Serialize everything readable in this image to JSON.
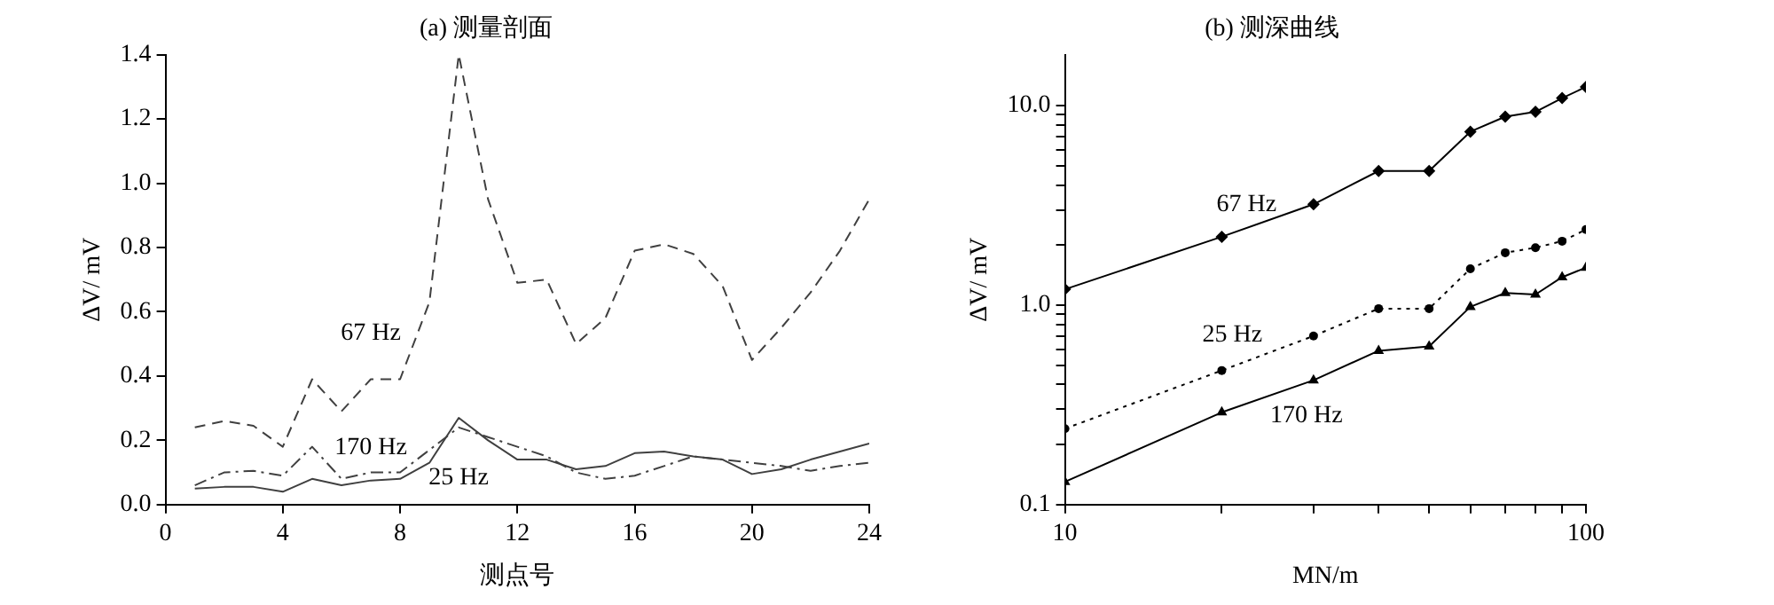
{
  "chart_data": [
    {
      "type": "line",
      "title": "(a) 测量剖面",
      "xlabel": "测点号",
      "ylabel": "ΔV/ mV",
      "x": [
        1,
        2,
        3,
        4,
        5,
        6,
        7,
        8,
        9,
        10,
        11,
        12,
        13,
        14,
        15,
        16,
        17,
        18,
        19,
        20,
        21,
        22,
        23,
        24
      ],
      "series": [
        {
          "name": "67 Hz",
          "color": "#404040",
          "line_style": "dashed",
          "values": [
            0.24,
            0.26,
            0.245,
            0.18,
            0.39,
            0.29,
            0.39,
            0.39,
            0.63,
            1.4,
            0.95,
            0.69,
            0.7,
            0.5,
            0.58,
            0.79,
            0.81,
            0.78,
            0.68,
            0.45,
            0.55,
            0.66,
            0.79,
            0.95
          ]
        },
        {
          "name": "170 Hz",
          "color": "#404040",
          "line_style": "dashdot",
          "values": [
            0.06,
            0.1,
            0.105,
            0.09,
            0.18,
            0.08,
            0.1,
            0.1,
            0.17,
            0.24,
            0.21,
            0.18,
            0.15,
            0.1,
            0.08,
            0.09,
            0.12,
            0.15,
            0.14,
            0.13,
            0.12,
            0.105,
            0.12,
            0.13
          ]
        },
        {
          "name": "25 Hz",
          "color": "#404040",
          "line_style": "solid",
          "values": [
            0.05,
            0.055,
            0.055,
            0.04,
            0.08,
            0.06,
            0.075,
            0.08,
            0.13,
            0.27,
            0.2,
            0.14,
            0.14,
            0.11,
            0.12,
            0.16,
            0.165,
            0.15,
            0.14,
            0.095,
            0.11,
            0.14,
            0.165,
            0.19
          ]
        }
      ],
      "xlim": [
        0,
        24
      ],
      "xticks": [
        0,
        4,
        8,
        12,
        16,
        20,
        24
      ],
      "ylim": [
        0,
        1.4
      ],
      "yticks": [
        {
          "value": 0,
          "label": "0.0"
        },
        0.2,
        0.4,
        0.6,
        0.8,
        {
          "value": 1,
          "label": "1.0"
        },
        1.2,
        1.4
      ],
      "grid": false,
      "legend": false,
      "marker": "none"
    },
    {
      "type": "line",
      "title": "(b) 测深曲线",
      "xlabel": "MN/m",
      "ylabel": "ΔV/ mV",
      "log": "xy",
      "x": [
        10,
        20,
        30,
        40,
        50,
        60,
        70,
        80,
        90,
        100
      ],
      "series": [
        {
          "name": "67 Hz",
          "color": "#000000",
          "line_style": "solid",
          "marker": "diamond",
          "values": [
            1.2,
            2.2,
            3.2,
            4.7,
            4.7,
            7.4,
            8.8,
            9.3,
            10.9,
            12.4
          ]
        },
        {
          "name": "25 Hz",
          "color": "#000000",
          "line_style": "dotted",
          "marker": "circle",
          "values": [
            0.24,
            0.47,
            0.7,
            0.96,
            0.96,
            1.52,
            1.83,
            1.94,
            2.09,
            2.39
          ]
        },
        {
          "name": "170 Hz",
          "color": "#000000",
          "line_style": "solid",
          "marker": "triangle",
          "values": [
            0.13,
            0.29,
            0.42,
            0.59,
            0.62,
            0.98,
            1.15,
            1.13,
            1.38,
            1.54
          ]
        }
      ],
      "xlim": [
        10,
        100
      ],
      "xticks": [
        10,
        {
          "value": 20,
          "label": null
        },
        {
          "value": 30,
          "label": null
        },
        {
          "value": 40,
          "label": null
        },
        {
          "value": 50,
          "label": null
        },
        {
          "value": 60,
          "label": null
        },
        {
          "value": 70,
          "label": null
        },
        {
          "value": 80,
          "label": null
        },
        {
          "value": 90,
          "label": null
        },
        100
      ],
      "ylim": [
        0.1,
        18
      ],
      "yticks": [
        0.1,
        {
          "value": 0.2,
          "label": null
        },
        {
          "value": 0.3,
          "label": null
        },
        {
          "value": 0.4,
          "label": null
        },
        {
          "value": 0.5,
          "label": null
        },
        {
          "value": 0.6,
          "label": null
        },
        {
          "value": 0.7,
          "label": null
        },
        {
          "value": 0.8,
          "label": null
        },
        {
          "value": 0.9,
          "label": null
        },
        {
          "value": 1,
          "label": "1.0"
        },
        {
          "value": 2,
          "label": null
        },
        {
          "value": 3,
          "label": null
        },
        {
          "value": 4,
          "label": null
        },
        {
          "value": 5,
          "label": null
        },
        {
          "value": 6,
          "label": null
        },
        {
          "value": 7,
          "label": null
        },
        {
          "value": 8,
          "label": null
        },
        {
          "value": 9,
          "label": null
        },
        {
          "value": 10,
          "label": "10.0"
        }
      ],
      "grid": false,
      "legend": false
    }
  ]
}
